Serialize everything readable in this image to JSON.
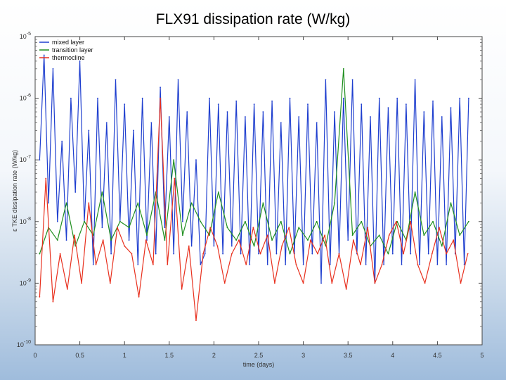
{
  "chart_data": {
    "type": "line",
    "title": "FLX91 dissipation rate (W/kg)",
    "xlabel": "time (days)",
    "ylabel": "ε TKE dissipation rate (W/kg)",
    "xlim": [
      0,
      5
    ],
    "ylim": [
      1e-10,
      1e-05
    ],
    "yscale": "log",
    "xticks": [
      0,
      0.5,
      1,
      1.5,
      2,
      2.5,
      3,
      3.5,
      4,
      4.5,
      5
    ],
    "xtick_labels": [
      "0",
      "0.5",
      "1",
      "1.5",
      "2",
      "2.5",
      "3",
      "3.5",
      "4",
      "4.5",
      "5"
    ],
    "yticks": [
      1e-10,
      1e-09,
      1e-08,
      1e-07,
      1e-06,
      1e-05
    ],
    "ytick_labels": [
      {
        "base": "10",
        "exp": "-10"
      },
      {
        "base": "10",
        "exp": "-9"
      },
      {
        "base": "10",
        "exp": "-8"
      },
      {
        "base": "10",
        "exp": "-7"
      },
      {
        "base": "10",
        "exp": "-6"
      },
      {
        "base": "10",
        "exp": "-5"
      }
    ],
    "legend_position": "top-left",
    "grid": false,
    "series": [
      {
        "name": "mixed layer",
        "color": "#1f3fcf",
        "x": [
          0.05,
          0.1,
          0.15,
          0.2,
          0.25,
          0.3,
          0.35,
          0.4,
          0.45,
          0.5,
          0.55,
          0.6,
          0.65,
          0.7,
          0.75,
          0.8,
          0.85,
          0.9,
          0.95,
          1.0,
          1.05,
          1.1,
          1.15,
          1.2,
          1.25,
          1.3,
          1.35,
          1.4,
          1.45,
          1.5,
          1.55,
          1.6,
          1.65,
          1.7,
          1.75,
          1.8,
          1.85,
          1.9,
          1.95,
          2.0,
          2.05,
          2.1,
          2.15,
          2.2,
          2.25,
          2.3,
          2.35,
          2.4,
          2.45,
          2.5,
          2.55,
          2.6,
          2.65,
          2.7,
          2.75,
          2.8,
          2.85,
          2.9,
          2.95,
          3.0,
          3.05,
          3.1,
          3.15,
          3.2,
          3.25,
          3.3,
          3.35,
          3.4,
          3.45,
          3.5,
          3.55,
          3.6,
          3.65,
          3.7,
          3.75,
          3.8,
          3.85,
          3.9,
          3.95,
          4.0,
          4.05,
          4.1,
          4.15,
          4.2,
          4.25,
          4.3,
          4.35,
          4.4,
          4.45,
          4.5,
          4.55,
          4.6,
          4.65,
          4.7,
          4.75,
          4.8,
          4.85
        ],
        "y": [
          1e-07,
          5e-06,
          2e-08,
          3e-06,
          1e-08,
          2e-07,
          5e-09,
          1e-06,
          3e-08,
          4e-06,
          1e-08,
          3e-07,
          2e-09,
          1e-06,
          8e-09,
          4e-07,
          3e-09,
          2e-06,
          1e-08,
          8e-07,
          5e-09,
          3e-07,
          2e-09,
          1e-06,
          5e-09,
          4e-07,
          3e-09,
          1.5e-06,
          8e-09,
          5e-07,
          3e-09,
          2e-06,
          1e-08,
          6e-07,
          4e-09,
          1e-07,
          2e-09,
          3e-09,
          1e-06,
          4e-09,
          8e-07,
          3e-09,
          6e-07,
          4e-09,
          9e-07,
          3e-09,
          5e-07,
          2e-09,
          8e-07,
          3e-09,
          6e-07,
          2e-09,
          9e-07,
          3e-09,
          4e-07,
          2e-09,
          1e-06,
          3e-09,
          5e-07,
          2e-09,
          8e-07,
          3e-09,
          4e-07,
          1e-09,
          2e-06,
          2e-09,
          6e-07,
          3e-09,
          1e-06,
          5e-09,
          2e-06,
          3e-09,
          8e-07,
          2e-09,
          5e-07,
          1e-09,
          1e-06,
          2e-09,
          7e-07,
          3e-09,
          1e-06,
          2e-09,
          8e-07,
          3e-09,
          2e-06,
          2e-09,
          6e-07,
          3e-09,
          9e-07,
          2e-09,
          5e-07,
          2e-09,
          7e-07,
          3e-09,
          1e-06,
          2e-09,
          1e-06
        ]
      },
      {
        "name": "transition layer",
        "color": "#1f8f1f",
        "x": [
          0.05,
          0.15,
          0.25,
          0.35,
          0.45,
          0.55,
          0.65,
          0.75,
          0.85,
          0.95,
          1.05,
          1.15,
          1.25,
          1.35,
          1.45,
          1.55,
          1.65,
          1.75,
          1.85,
          1.95,
          2.05,
          2.15,
          2.25,
          2.35,
          2.45,
          2.55,
          2.65,
          2.75,
          2.85,
          2.95,
          3.05,
          3.15,
          3.25,
          3.35,
          3.45,
          3.55,
          3.65,
          3.75,
          3.85,
          3.95,
          4.05,
          4.15,
          4.25,
          4.35,
          4.45,
          4.55,
          4.65,
          4.75,
          4.85
        ],
        "y": [
          3e-09,
          8e-09,
          5e-09,
          2e-08,
          4e-09,
          1e-08,
          6e-09,
          3e-08,
          5e-09,
          1e-08,
          8e-09,
          2e-08,
          6e-09,
          3e-08,
          5e-09,
          1e-07,
          6e-09,
          2e-08,
          1e-08,
          6e-09,
          3e-08,
          8e-09,
          5e-09,
          1e-08,
          4e-09,
          2e-08,
          5e-09,
          1e-08,
          3e-09,
          8e-09,
          5e-09,
          1e-08,
          4e-09,
          2e-08,
          3e-06,
          6e-09,
          1e-08,
          4e-09,
          6e-09,
          3e-09,
          1e-08,
          5e-09,
          3e-08,
          6e-09,
          1e-08,
          4e-09,
          2e-08,
          6e-09,
          1e-08
        ]
      },
      {
        "name": "thermocline",
        "color": "#e8301e",
        "x": [
          0.05,
          0.12,
          0.2,
          0.28,
          0.36,
          0.44,
          0.52,
          0.6,
          0.68,
          0.76,
          0.84,
          0.92,
          1.0,
          1.08,
          1.16,
          1.24,
          1.32,
          1.4,
          1.48,
          1.56,
          1.64,
          1.72,
          1.8,
          1.88,
          1.96,
          2.04,
          2.12,
          2.2,
          2.28,
          2.36,
          2.44,
          2.52,
          2.6,
          2.68,
          2.76,
          2.84,
          2.92,
          3.0,
          3.08,
          3.16,
          3.24,
          3.32,
          3.4,
          3.48,
          3.56,
          3.64,
          3.72,
          3.8,
          3.88,
          3.96,
          4.04,
          4.12,
          4.2,
          4.28,
          4.36,
          4.44,
          4.52,
          4.6,
          4.68,
          4.76,
          4.84
        ],
        "y": [
          6e-10,
          5e-08,
          5e-10,
          3e-09,
          8e-10,
          6e-09,
          1e-09,
          2e-08,
          2e-09,
          5e-09,
          1e-09,
          8e-09,
          4e-09,
          3e-09,
          6e-10,
          5e-09,
          2e-09,
          1e-06,
          2e-09,
          5e-08,
          8e-10,
          4e-09,
          2.5e-10,
          3e-09,
          8e-09,
          4e-09,
          1e-09,
          3e-09,
          5e-09,
          2e-09,
          8e-09,
          3e-09,
          6e-09,
          1e-09,
          4e-09,
          8e-09,
          2e-09,
          1e-09,
          5e-09,
          3e-09,
          6e-09,
          1e-09,
          3e-09,
          8e-10,
          5e-09,
          2e-09,
          8e-09,
          1e-09,
          2e-09,
          6e-09,
          1e-08,
          3e-09,
          1e-08,
          2e-09,
          1e-09,
          3e-09,
          8e-09,
          3e-09,
          5e-09,
          1e-09,
          3e-09
        ]
      }
    ]
  }
}
